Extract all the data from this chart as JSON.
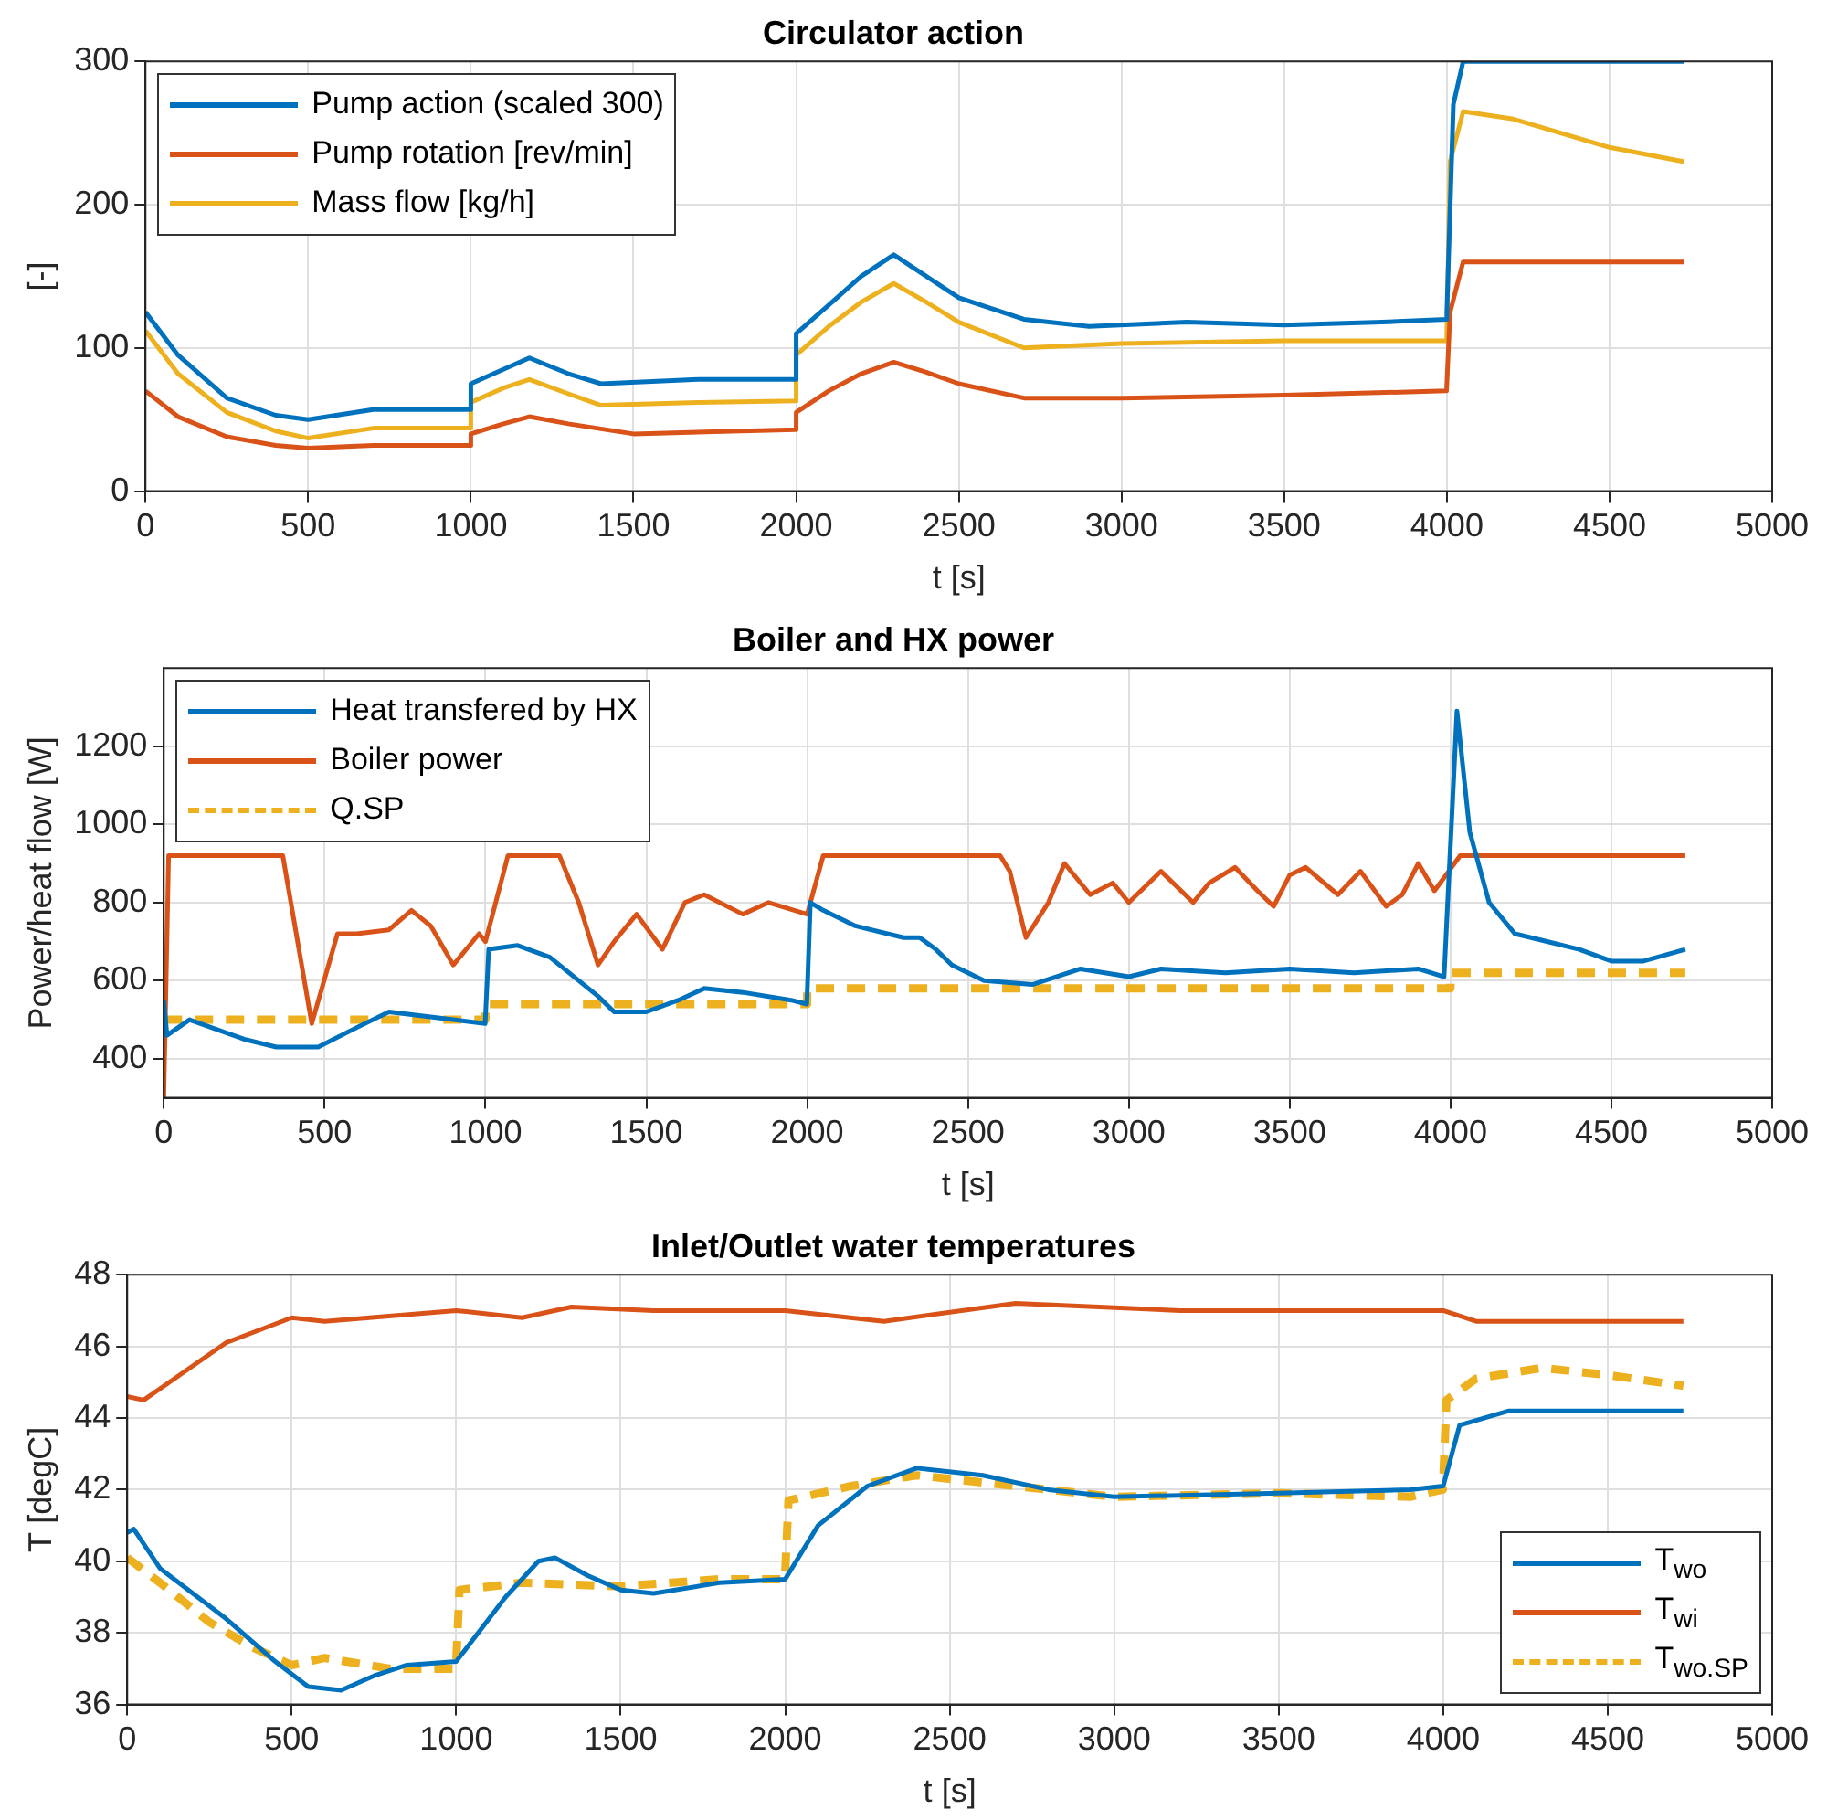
{
  "chart_data": [
    {
      "type": "line",
      "title": "Circulator action",
      "xlabel": "t [s]",
      "ylabel": "[-]",
      "xlim": [
        0,
        5000
      ],
      "xticks": [
        0,
        500,
        1000,
        1500,
        2000,
        2500,
        3000,
        3500,
        4000,
        4500,
        5000
      ],
      "ylim": [
        0,
        300
      ],
      "yticks": [
        0,
        100,
        200,
        300
      ],
      "grid": true,
      "legend": "top left",
      "line_style": "solid",
      "series": [
        {
          "name": "Pump action (scaled 300)",
          "color": "#0072bd",
          "x": [
            0,
            100,
            250,
            400,
            500,
            700,
            999,
            1000,
            1100,
            1180,
            1300,
            1400,
            1700,
            1999,
            2000,
            2100,
            2200,
            2300,
            2400,
            2500,
            2700,
            2900,
            3200,
            3500,
            3800,
            3999,
            4000,
            4020,
            4050,
            4730
          ],
          "values": [
            125,
            95,
            65,
            53,
            50,
            57,
            57,
            75,
            85,
            93,
            82,
            75,
            78,
            78,
            110,
            130,
            150,
            165,
            150,
            135,
            120,
            115,
            118,
            116,
            118,
            120,
            125,
            270,
            300,
            300
          ]
        },
        {
          "name": "Pump rotation [rev/min]",
          "color": "#d95319",
          "x": [
            0,
            100,
            250,
            400,
            500,
            700,
            999,
            1000,
            1100,
            1180,
            1300,
            1500,
            1999,
            2000,
            2100,
            2200,
            2300,
            2400,
            2500,
            2700,
            3000,
            3500,
            3999,
            4000,
            4010,
            4050,
            4730
          ],
          "values": [
            70,
            52,
            38,
            32,
            30,
            32,
            32,
            40,
            47,
            52,
            47,
            40,
            43,
            55,
            70,
            82,
            90,
            83,
            75,
            65,
            65,
            67,
            70,
            70,
            125,
            160,
            160
          ]
        },
        {
          "name": "Mass flow [kg/h]",
          "color": "#edb120",
          "x": [
            0,
            100,
            250,
            400,
            500,
            700,
            999,
            1000,
            1100,
            1180,
            1300,
            1400,
            1700,
            1999,
            2000,
            2100,
            2200,
            2300,
            2400,
            2500,
            2700,
            3000,
            3500,
            3999,
            4000,
            4010,
            4050,
            4200,
            4500,
            4730
          ],
          "values": [
            112,
            82,
            55,
            42,
            37,
            44,
            44,
            62,
            72,
            78,
            68,
            60,
            62,
            63,
            95,
            115,
            132,
            145,
            132,
            118,
            100,
            103,
            105,
            105,
            110,
            230,
            265,
            260,
            240,
            230
          ]
        }
      ]
    },
    {
      "type": "line",
      "title": "Boiler and HX power",
      "xlabel": "t [s]",
      "ylabel": "Power/heat flow [W]",
      "xlim": [
        0,
        5000
      ],
      "xticks": [
        0,
        500,
        1000,
        1500,
        2000,
        2500,
        3000,
        3500,
        4000,
        4500,
        5000
      ],
      "ylim": [
        300,
        1400
      ],
      "yticks": [
        400,
        600,
        800,
        1000,
        1200
      ],
      "grid": true,
      "legend": "top left",
      "line_style": "solid",
      "series": [
        {
          "name": "Heat transfered by HX",
          "color": "#0072bd",
          "x": [
            0,
            10,
            80,
            250,
            350,
            480,
            600,
            700,
            900,
            999,
            1010,
            1100,
            1200,
            1350,
            1400,
            1500,
            1600,
            1680,
            1800,
            1950,
            1999,
            2010,
            2050,
            2150,
            2300,
            2350,
            2400,
            2450,
            2550,
            2700,
            2850,
            3000,
            3100,
            3300,
            3500,
            3700,
            3900,
            3980,
            4020,
            4060,
            4120,
            4200,
            4300,
            4400,
            4500,
            4600,
            4730
          ],
          "values": [
            550,
            460,
            500,
            450,
            430,
            430,
            480,
            520,
            500,
            490,
            680,
            690,
            660,
            560,
            520,
            520,
            550,
            580,
            570,
            550,
            540,
            800,
            780,
            740,
            710,
            710,
            680,
            640,
            600,
            590,
            630,
            610,
            630,
            620,
            630,
            620,
            630,
            610,
            1290,
            980,
            800,
            720,
            700,
            680,
            650,
            650,
            680
          ]
        },
        {
          "name": "Boiler power",
          "color": "#d95319",
          "x": [
            0,
            15,
            370,
            460,
            540,
            600,
            700,
            770,
            830,
            900,
            980,
            1000,
            1070,
            1230,
            1290,
            1350,
            1400,
            1470,
            1550,
            1620,
            1680,
            1800,
            1880,
            2000,
            2050,
            2600,
            2630,
            2680,
            2750,
            2800,
            2880,
            2950,
            3000,
            3100,
            3200,
            3250,
            3330,
            3400,
            3450,
            3500,
            3550,
            3650,
            3720,
            3800,
            3850,
            3900,
            3950,
            4030,
            4730
          ],
          "values": [
            300,
            920,
            920,
            490,
            720,
            720,
            730,
            780,
            740,
            640,
            720,
            700,
            920,
            920,
            800,
            640,
            700,
            770,
            680,
            800,
            820,
            770,
            800,
            770,
            920,
            920,
            880,
            710,
            800,
            900,
            820,
            850,
            800,
            880,
            800,
            850,
            890,
            830,
            790,
            870,
            890,
            820,
            880,
            790,
            820,
            900,
            830,
            920,
            920
          ]
        },
        {
          "name": "Q.SP",
          "type": "step",
          "line_style": "dashed",
          "color": "#edb120",
          "x": [
            0,
            1000,
            2000,
            4000,
            4730
          ],
          "values": [
            500,
            540,
            580,
            620,
            620
          ]
        }
      ]
    },
    {
      "type": "line",
      "title": "Inlet/Outlet water temperatures",
      "xlabel": "t [s]",
      "ylabel": "T [degC]",
      "xlim": [
        0,
        5000
      ],
      "xticks": [
        0,
        500,
        1000,
        1500,
        2000,
        2500,
        3000,
        3500,
        4000,
        4500,
        5000
      ],
      "ylim": [
        36,
        48
      ],
      "yticks": [
        36,
        38,
        40,
        42,
        44,
        46,
        48
      ],
      "grid": true,
      "legend": "bottom right",
      "line_style": "solid",
      "series": [
        {
          "name": "T$_{wo}$",
          "color": "#0072bd",
          "x": [
            0,
            20,
            100,
            300,
            450,
            550,
            650,
            750,
            850,
            1000,
            1150,
            1250,
            1300,
            1400,
            1500,
            1600,
            1800,
            2000,
            2100,
            2250,
            2400,
            2600,
            2800,
            3000,
            3500,
            3900,
            4000,
            4050,
            4200,
            4730
          ],
          "values": [
            40.8,
            40.9,
            39.8,
            38.4,
            37.2,
            36.5,
            36.4,
            36.8,
            37.1,
            37.2,
            39,
            40,
            40.1,
            39.6,
            39.2,
            39.1,
            39.4,
            39.5,
            41,
            42.1,
            42.6,
            42.4,
            42,
            41.8,
            41.9,
            42,
            42.1,
            43.8,
            44.2,
            44.2
          ]
        },
        {
          "name": "T$_{wi}$",
          "color": "#d95319",
          "x": [
            0,
            50,
            300,
            500,
            600,
            1000,
            1200,
            1350,
            1600,
            2000,
            2300,
            2700,
            3200,
            4000,
            4100,
            4730
          ],
          "values": [
            44.6,
            44.5,
            46.1,
            46.8,
            46.7,
            47,
            46.8,
            47.1,
            47,
            47,
            46.7,
            47.2,
            47,
            47,
            46.7,
            46.7
          ]
        },
        {
          "name": "T$_{wo.SP}$",
          "line_style": "dashed",
          "color": "#edb120",
          "x": [
            0,
            100,
            250,
            380,
            500,
            600,
            800,
            999,
            1010,
            1200,
            1500,
            1800,
            1999,
            2010,
            2200,
            2400,
            2700,
            3000,
            3500,
            3900,
            3999,
            4010,
            4100,
            4300,
            4500,
            4730
          ],
          "values": [
            40.1,
            39.4,
            38.3,
            37.6,
            37.1,
            37.3,
            37,
            37,
            39.2,
            39.4,
            39.3,
            39.5,
            39.5,
            41.7,
            42.1,
            42.4,
            42.1,
            41.8,
            41.9,
            41.8,
            42,
            44.5,
            45.1,
            45.4,
            45.2,
            44.9
          ]
        }
      ]
    }
  ]
}
